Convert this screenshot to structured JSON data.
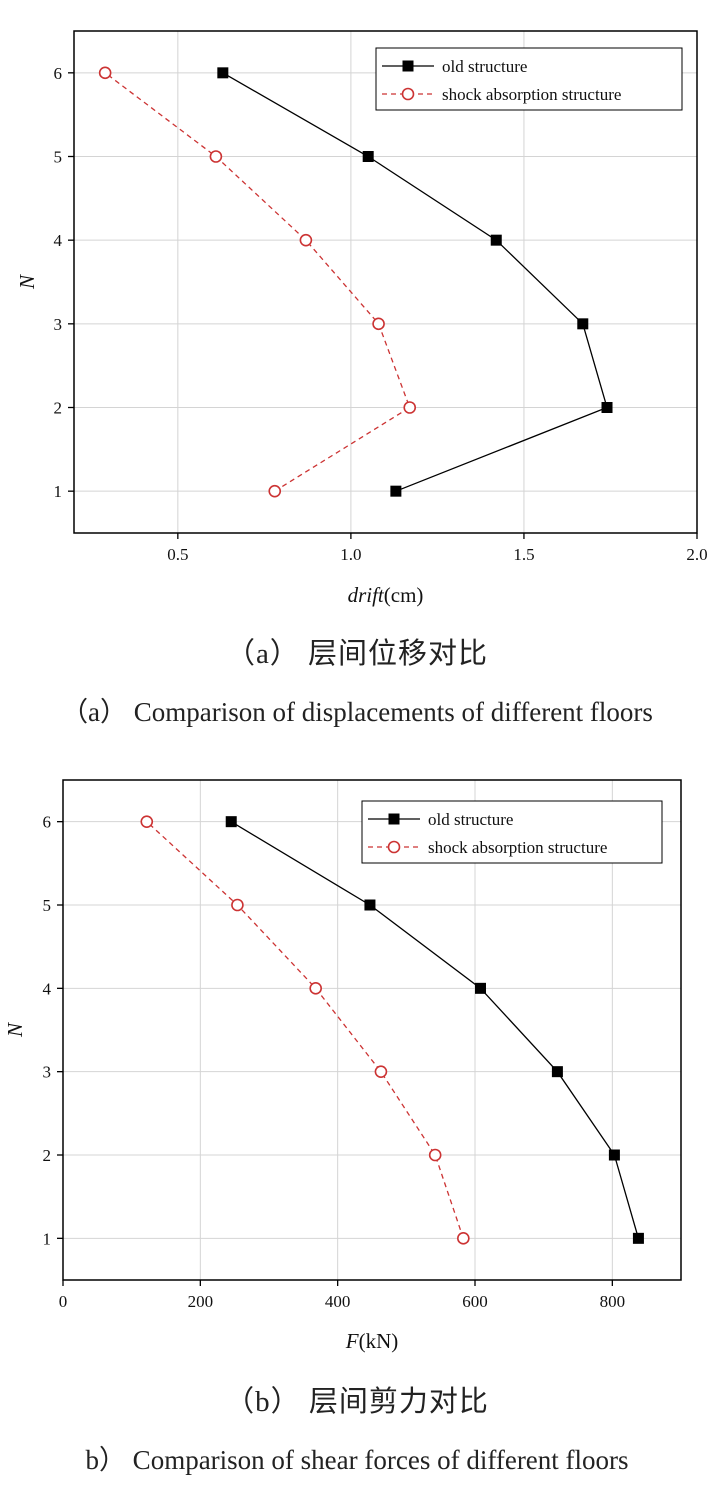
{
  "figures": [
    {
      "caption_zh": "（a） 层间位移对比",
      "caption_en": "（a） Comparison of displacements of different floors"
    },
    {
      "caption_zh": "（b） 层间剪力对比",
      "caption_en": "b） Comparison of shear forces of different floors"
    }
  ],
  "chart_data": [
    {
      "type": "line",
      "title": "",
      "xlabel": "drift(cm)",
      "ylabel": "N",
      "xlim": [
        0.2,
        2.0
      ],
      "ylim": [
        0.5,
        6.5
      ],
      "xticks": [
        0.5,
        1.0,
        1.5,
        2.0
      ],
      "xtick_labels": [
        "0.5",
        "1.0",
        "1.5",
        "2.0"
      ],
      "yticks": [
        1,
        2,
        3,
        4,
        5,
        6
      ],
      "ytick_labels": [
        "1",
        "2",
        "3",
        "4",
        "5",
        "6"
      ],
      "grid": true,
      "legend_position": "top-right",
      "series": [
        {
          "name": "old structure",
          "color": "#000000",
          "marker": "filled-square",
          "line": "solid",
          "x": [
            1.13,
            1.74,
            1.67,
            1.42,
            1.05,
            0.63
          ],
          "y": [
            1,
            2,
            3,
            4,
            5,
            6
          ]
        },
        {
          "name": "shock absorption structure",
          "color": "#cc3333",
          "marker": "open-circle",
          "line": "dashed",
          "x": [
            0.78,
            1.17,
            1.08,
            0.87,
            0.61,
            0.29
          ],
          "y": [
            1,
            2,
            3,
            4,
            5,
            6
          ]
        }
      ]
    },
    {
      "type": "line",
      "title": "",
      "xlabel": "F(kN)",
      "ylabel": "N",
      "xlim": [
        0,
        900
      ],
      "ylim": [
        0.5,
        6.5
      ],
      "xticks": [
        0,
        200,
        400,
        600,
        800
      ],
      "xtick_labels": [
        "0",
        "200",
        "400",
        "600",
        "800"
      ],
      "yticks": [
        1,
        2,
        3,
        4,
        5,
        6
      ],
      "ytick_labels": [
        "1",
        "2",
        "3",
        "4",
        "5",
        "6"
      ],
      "grid": true,
      "legend_position": "top-right",
      "series": [
        {
          "name": "old structure",
          "color": "#000000",
          "marker": "filled-square",
          "line": "solid",
          "x": [
            838,
            803,
            720,
            608,
            447,
            245
          ],
          "y": [
            1,
            2,
            3,
            4,
            5,
            6
          ]
        },
        {
          "name": "shock absorption structure",
          "color": "#cc3333",
          "marker": "open-circle",
          "line": "dashed",
          "x": [
            583,
            542,
            463,
            368,
            254,
            122
          ],
          "y": [
            1,
            2,
            3,
            4,
            5,
            6
          ]
        }
      ]
    }
  ]
}
